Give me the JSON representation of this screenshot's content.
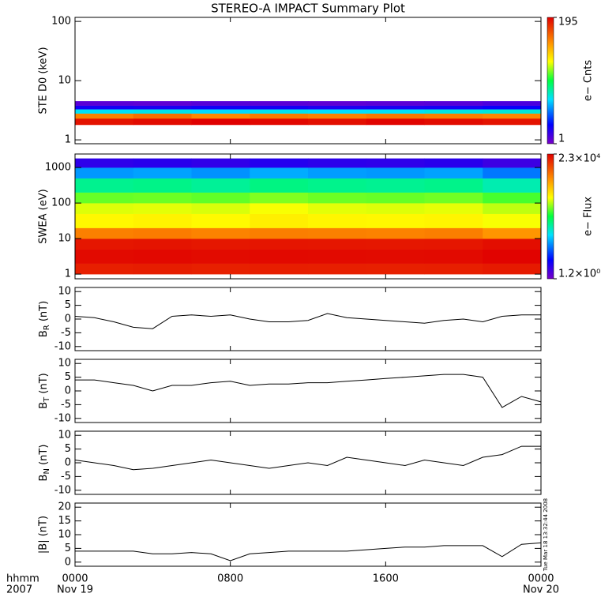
{
  "figure": {
    "title": "STEREO-A IMPACT Summary Plot",
    "xlim": [
      0,
      24
    ],
    "xticks": [
      {
        "value": 0,
        "label": "0000"
      },
      {
        "value": 8,
        "label": "0800"
      },
      {
        "value": 16,
        "label": "1600"
      },
      {
        "value": 24,
        "label": "0000"
      }
    ],
    "date_labels": [
      {
        "value": 0,
        "label": "Nov 19"
      },
      {
        "value": 24,
        "label": "Nov 20"
      }
    ],
    "corner_labels": [
      "hhmm",
      "2007"
    ],
    "timestamp": "Tue Mar 18 13:32:44 2008"
  },
  "chart_data": [
    {
      "type": "heatmap",
      "ylabel": "STE D0 (keV)",
      "log": true,
      "ylim": [
        0.86,
        117
      ],
      "yticks": [
        1,
        10,
        100
      ],
      "x_edges": [
        0,
        3,
        6,
        9,
        12,
        15,
        18,
        21,
        24
      ],
      "y_edges": [
        1.8,
        2.3,
        2.8,
        3.3,
        3.8,
        4.5
      ],
      "z": [
        [
          190,
          192,
          195,
          193,
          191,
          194,
          192,
          190
        ],
        [
          160,
          165,
          158,
          162,
          160,
          163,
          161,
          159
        ],
        [
          70,
          72,
          68,
          71,
          69,
          70,
          73,
          75
        ],
        [
          25,
          24,
          26,
          25,
          23,
          24,
          25,
          28
        ],
        [
          8,
          7,
          9,
          8,
          7,
          8,
          9,
          12
        ]
      ],
      "zlog": false,
      "zlim": [
        1,
        195
      ],
      "colorbar": {
        "label": "e− Cnts",
        "ticks": [
          1,
          195
        ]
      }
    },
    {
      "type": "heatmap",
      "ylabel": "SWEA (eV)",
      "log": true,
      "ylim": [
        0.74,
        2400
      ],
      "yticks": [
        1,
        10,
        100,
        1000
      ],
      "x_edges": [
        0,
        3,
        6,
        9,
        12,
        15,
        18,
        21,
        24
      ],
      "y_edges": [
        1,
        2,
        5,
        10,
        20,
        50,
        100,
        200,
        500,
        1000,
        1800
      ],
      "z": [
        [
          15000,
          15500,
          14800,
          15200,
          15000,
          14900,
          15100,
          16000
        ],
        [
          20000,
          20500,
          19800,
          20200,
          20000,
          19900,
          20100,
          22000
        ],
        [
          17000,
          17500,
          16800,
          17200,
          17000,
          16900,
          17100,
          19000
        ],
        [
          4000,
          4200,
          3800,
          4100,
          4000,
          3900,
          4100,
          3000
        ],
        [
          800,
          850,
          780,
          900,
          820,
          800,
          830,
          700
        ],
        [
          600,
          620,
          580,
          700,
          620,
          600,
          630,
          500
        ],
        [
          300,
          310,
          290,
          350,
          310,
          300,
          320,
          250
        ],
        [
          90,
          95,
          85,
          100,
          92,
          88,
          94,
          70
        ],
        [
          20,
          22,
          19,
          24,
          21,
          20,
          22,
          15
        ],
        [
          3,
          3.2,
          2.9,
          3.4,
          3.1,
          3,
          3.2,
          2.5
        ]
      ],
      "zlog": true,
      "zlim": [
        1.2,
        23000
      ],
      "colorbar": {
        "label": "e− Flux",
        "ticks": [
          {
            "value": 1.2,
            "label": "1.2×10⁰"
          },
          {
            "value": 23000,
            "label": "2.3×10⁴"
          }
        ]
      }
    },
    {
      "type": "line",
      "ylabel": [
        "B",
        "R",
        " (nT)"
      ],
      "ylim": [
        -11.5,
        11.5
      ],
      "yticks": [
        -10,
        -5,
        0,
        5,
        10
      ],
      "color": "#000000",
      "x": [
        0,
        1,
        2,
        3,
        4,
        5,
        6,
        7,
        8,
        9,
        10,
        11,
        12,
        13,
        14,
        15,
        16,
        17,
        18,
        19,
        20,
        21,
        22,
        23,
        24
      ],
      "values": [
        1,
        0.5,
        -1,
        -3,
        -3.5,
        1,
        1.5,
        1,
        1.5,
        0,
        -1,
        -1,
        -0.5,
        2,
        0.5,
        0,
        -0.5,
        -1,
        -1.5,
        -0.5,
        0,
        -1,
        1,
        1.5,
        1.5
      ]
    },
    {
      "type": "line",
      "ylabel": [
        "B",
        "T",
        " (nT)"
      ],
      "ylim": [
        -11.5,
        11.5
      ],
      "yticks": [
        -10,
        -5,
        0,
        5,
        10
      ],
      "color": "#000000",
      "x": [
        0,
        1,
        2,
        3,
        4,
        5,
        6,
        7,
        8,
        9,
        10,
        11,
        12,
        13,
        14,
        15,
        16,
        17,
        18,
        19,
        20,
        21,
        22,
        23,
        24
      ],
      "values": [
        4,
        4,
        3,
        2,
        0,
        2,
        2,
        3,
        3.5,
        2,
        2.5,
        2.5,
        3,
        3,
        3.5,
        4,
        4.5,
        5,
        5.5,
        6,
        6,
        5,
        -6,
        -2,
        -4
      ]
    },
    {
      "type": "line",
      "ylabel": [
        "B",
        "N",
        " (nT)"
      ],
      "ylim": [
        -11.5,
        11.5
      ],
      "yticks": [
        -10,
        -5,
        0,
        5,
        10
      ],
      "color": "#000000",
      "x": [
        0,
        1,
        2,
        3,
        4,
        5,
        6,
        7,
        8,
        9,
        10,
        11,
        12,
        13,
        14,
        15,
        16,
        17,
        18,
        19,
        20,
        21,
        22,
        23,
        24
      ],
      "values": [
        1,
        0,
        -1,
        -2.5,
        -2,
        -1,
        0,
        1,
        0,
        -1,
        -2,
        -1,
        0,
        -1,
        2,
        1,
        0,
        -1,
        1,
        0,
        -1,
        2,
        3,
        6,
        6
      ]
    },
    {
      "type": "line",
      "ylabel": "|B| (nT)",
      "ylim": [
        -1.5,
        21.5
      ],
      "yticks": [
        0,
        5,
        10,
        15,
        20
      ],
      "color": "#000000",
      "x": [
        0,
        1,
        2,
        3,
        4,
        5,
        6,
        7,
        8,
        9,
        10,
        11,
        12,
        13,
        14,
        15,
        16,
        17,
        18,
        19,
        20,
        21,
        22,
        23,
        24
      ],
      "values": [
        4,
        4,
        4,
        4,
        3,
        3,
        3.5,
        3,
        0.5,
        3,
        3.5,
        4,
        4,
        4,
        4,
        4.5,
        5,
        5.5,
        5.5,
        6,
        6,
        6,
        2,
        6.5,
        7
      ]
    }
  ]
}
